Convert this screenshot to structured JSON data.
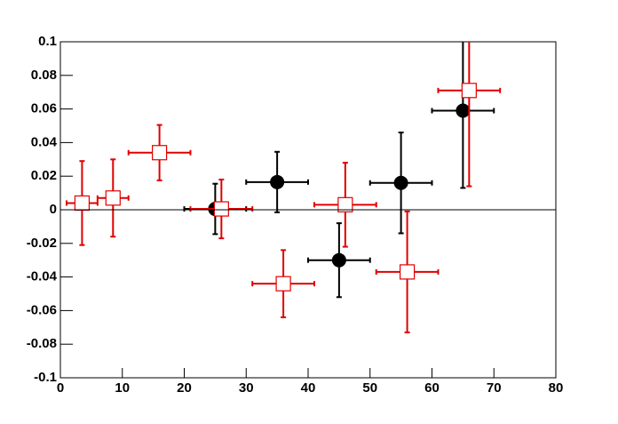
{
  "chart_data": {
    "type": "errorbar",
    "xlim": [
      0,
      80
    ],
    "xticks": [
      0,
      10,
      20,
      30,
      40,
      50,
      60,
      70,
      80
    ],
    "ylim": [
      -0.1,
      0.1
    ],
    "yticks": [
      -0.1,
      -0.08,
      -0.06,
      -0.04,
      -0.02,
      0,
      0.02,
      0.04,
      0.06,
      0.08,
      0.1
    ],
    "zero_line": true,
    "series": [
      {
        "color": "#000000",
        "marker": "circle",
        "filled": true,
        "x": [
          25,
          35,
          45,
          55,
          65
        ],
        "values": [
          0.0005,
          0.0165,
          -0.03,
          0.016,
          0.059
        ],
        "xerr": [
          5,
          5,
          5,
          5,
          5
        ],
        "yerr": [
          0.015,
          0.018,
          0.022,
          0.03,
          0.046
        ]
      },
      {
        "color": "#e00000",
        "marker": "square",
        "filled": false,
        "x": [
          3.5,
          8.5,
          16,
          26,
          36,
          46,
          56,
          66
        ],
        "values": [
          0.004,
          0.007,
          0.034,
          0.0005,
          -0.044,
          0.003,
          -0.037,
          0.071
        ],
        "xerr": [
          2.5,
          2.5,
          5,
          5,
          5,
          5,
          5,
          5
        ],
        "yerr": [
          0.025,
          0.023,
          0.0165,
          0.0175,
          0.02,
          0.025,
          0.036,
          0.057
        ]
      }
    ]
  }
}
